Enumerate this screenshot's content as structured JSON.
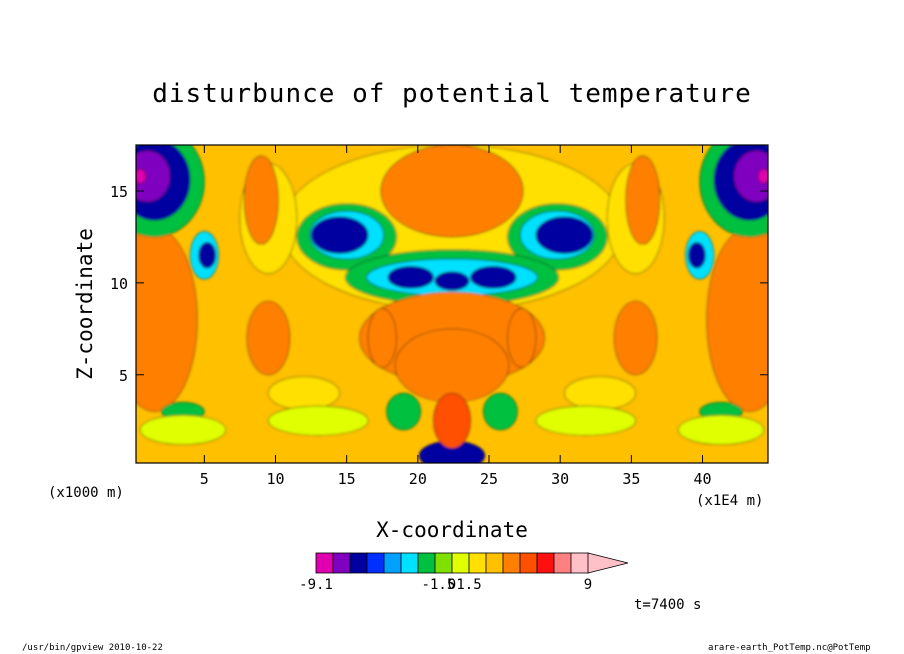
{
  "chart_data": {
    "type": "heatmap",
    "title": "disturbunce of potential temperature",
    "xlabel": "X-coordinate",
    "ylabel": "Z-coordinate",
    "x_unit_left": "(x1000 m)",
    "x_unit_right": "(x1E4 m)",
    "xlim": [
      0.2,
      44.6
    ],
    "ylim": [
      0.2,
      17.5
    ],
    "xticks": [
      5,
      10,
      15,
      20,
      25,
      30,
      35,
      40
    ],
    "yticks": [
      5,
      10,
      15
    ],
    "time_label": "t=7400 s",
    "colorbar": {
      "colors": [
        "#e000b0",
        "#8000c0",
        "#0000a0",
        "#0030ff",
        "#00a0ff",
        "#00e0ff",
        "#00c040",
        "#80e000",
        "#e0ff00",
        "#ffe000",
        "#ffc000",
        "#ff8000",
        "#ff5000",
        "#ff1010",
        "#ff8080",
        "#ffc0c8"
      ],
      "tick_labels": [
        "-9.1",
        "-1.5",
        "0",
        "1.5",
        "9"
      ]
    }
  },
  "footer": {
    "left": "/usr/bin/gpview  2010-10-22",
    "right": "arare-earth_PotTemp.nc@PotTemp"
  }
}
